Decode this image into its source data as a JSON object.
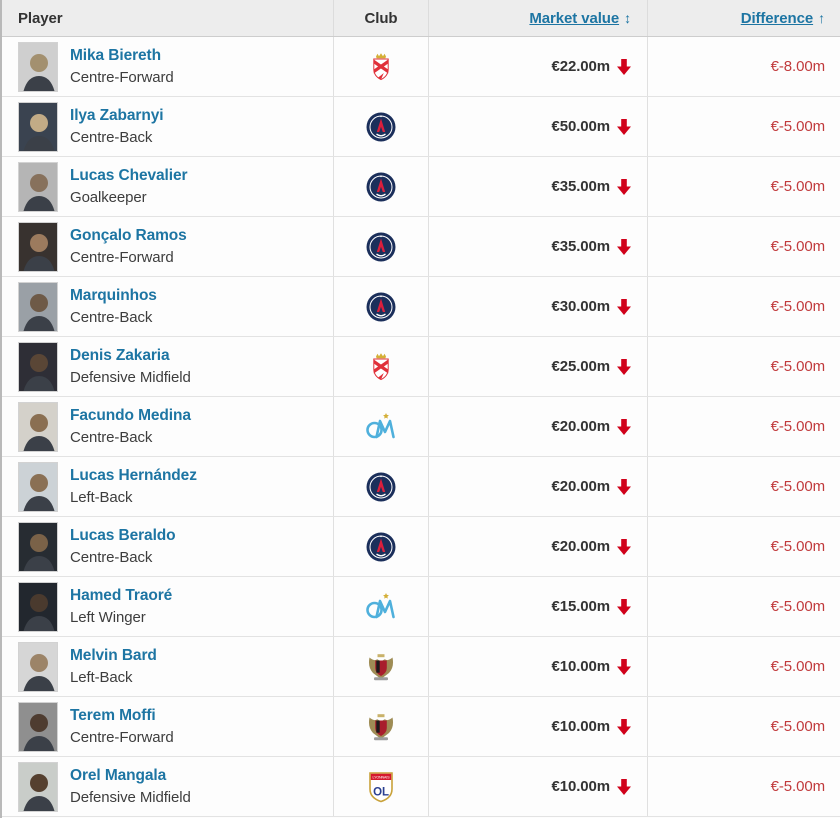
{
  "header": {
    "player_label": "Player",
    "club_label": "Club",
    "market_value_label": "Market value",
    "market_value_sort_glyph": "↕",
    "difference_label": "Difference",
    "difference_sort_glyph": "↑"
  },
  "colors": {
    "link_blue": "#1d75a3",
    "text_dark": "#333333",
    "difference_red": "#c13a3c",
    "trend_arrow_red": "#d0021b",
    "header_bg": "#ededed",
    "row_bg": "#fdfdfd"
  },
  "players": [
    {
      "name": "Mika Biereth",
      "position": "Centre-Forward",
      "club_icon": "as-monaco-crest",
      "club": "monaco",
      "market_value": "€22.00m",
      "trend": "down",
      "difference": "€-8.00m",
      "photo_bg": "#cfcfcf",
      "photo_fg": "#a3906f"
    },
    {
      "name": "Ilya Zabarnyi",
      "position": "Centre-Back",
      "club_icon": "psg-crest",
      "club": "psg",
      "market_value": "€50.00m",
      "trend": "down",
      "difference": "€-5.00m",
      "photo_bg": "#3a4350",
      "photo_fg": "#c2ab86"
    },
    {
      "name": "Lucas Chevalier",
      "position": "Goalkeeper",
      "club_icon": "psg-crest",
      "club": "psg",
      "market_value": "€35.00m",
      "trend": "down",
      "difference": "€-5.00m",
      "photo_bg": "#b5b5b5",
      "photo_fg": "#87715c"
    },
    {
      "name": "Gonçalo Ramos",
      "position": "Centre-Forward",
      "club_icon": "psg-crest",
      "club": "psg",
      "market_value": "€35.00m",
      "trend": "down",
      "difference": "€-5.00m",
      "photo_bg": "#38322f",
      "photo_fg": "#9c7b5e"
    },
    {
      "name": "Marquinhos",
      "position": "Centre-Back",
      "club_icon": "psg-crest",
      "club": "psg",
      "market_value": "€30.00m",
      "trend": "down",
      "difference": "€-5.00m",
      "photo_bg": "#9aa0a6",
      "photo_fg": "#6e5a47"
    },
    {
      "name": "Denis Zakaria",
      "position": "Defensive Midfield",
      "club_icon": "as-monaco-crest",
      "club": "monaco",
      "market_value": "€25.00m",
      "trend": "down",
      "difference": "€-5.00m",
      "photo_bg": "#2e2e36",
      "photo_fg": "#5a4636"
    },
    {
      "name": "Facundo Medina",
      "position": "Centre-Back",
      "club_icon": "marseille-crest",
      "club": "marseille",
      "market_value": "€20.00m",
      "trend": "down",
      "difference": "€-5.00m",
      "photo_bg": "#d4d1ca",
      "photo_fg": "#8a6f52"
    },
    {
      "name": "Lucas Hernández",
      "position": "Left-Back",
      "club_icon": "psg-crest",
      "club": "psg",
      "market_value": "€20.00m",
      "trend": "down",
      "difference": "€-5.00m",
      "photo_bg": "#ccd2d6",
      "photo_fg": "#8a7054"
    },
    {
      "name": "Lucas Beraldo",
      "position": "Centre-Back",
      "club_icon": "psg-crest",
      "club": "psg",
      "market_value": "€20.00m",
      "trend": "down",
      "difference": "€-5.00m",
      "photo_bg": "#272c32",
      "photo_fg": "#7a6248"
    },
    {
      "name": "Hamed Traoré",
      "position": "Left Winger",
      "club_icon": "marseille-crest",
      "club": "marseille",
      "market_value": "€15.00m",
      "trend": "down",
      "difference": "€-5.00m",
      "photo_bg": "#22272e",
      "photo_fg": "#4a3a2e"
    },
    {
      "name": "Melvin Bard",
      "position": "Left-Back",
      "club_icon": "ogc-nice-crest",
      "club": "nice",
      "market_value": "€10.00m",
      "trend": "down",
      "difference": "€-5.00m",
      "photo_bg": "#d6d6d6",
      "photo_fg": "#9c8468"
    },
    {
      "name": "Terem Moffi",
      "position": "Centre-Forward",
      "club_icon": "ogc-nice-crest",
      "club": "nice",
      "market_value": "€10.00m",
      "trend": "down",
      "difference": "€-5.00m",
      "photo_bg": "#8f8f8f",
      "photo_fg": "#4e3c30"
    },
    {
      "name": "Orel Mangala",
      "position": "Defensive Midfield",
      "club_icon": "ol-lyon-crest",
      "club": "lyon",
      "market_value": "€10.00m",
      "trend": "down",
      "difference": "€-5.00m",
      "photo_bg": "#c9cdc9",
      "photo_fg": "#55402f"
    }
  ]
}
